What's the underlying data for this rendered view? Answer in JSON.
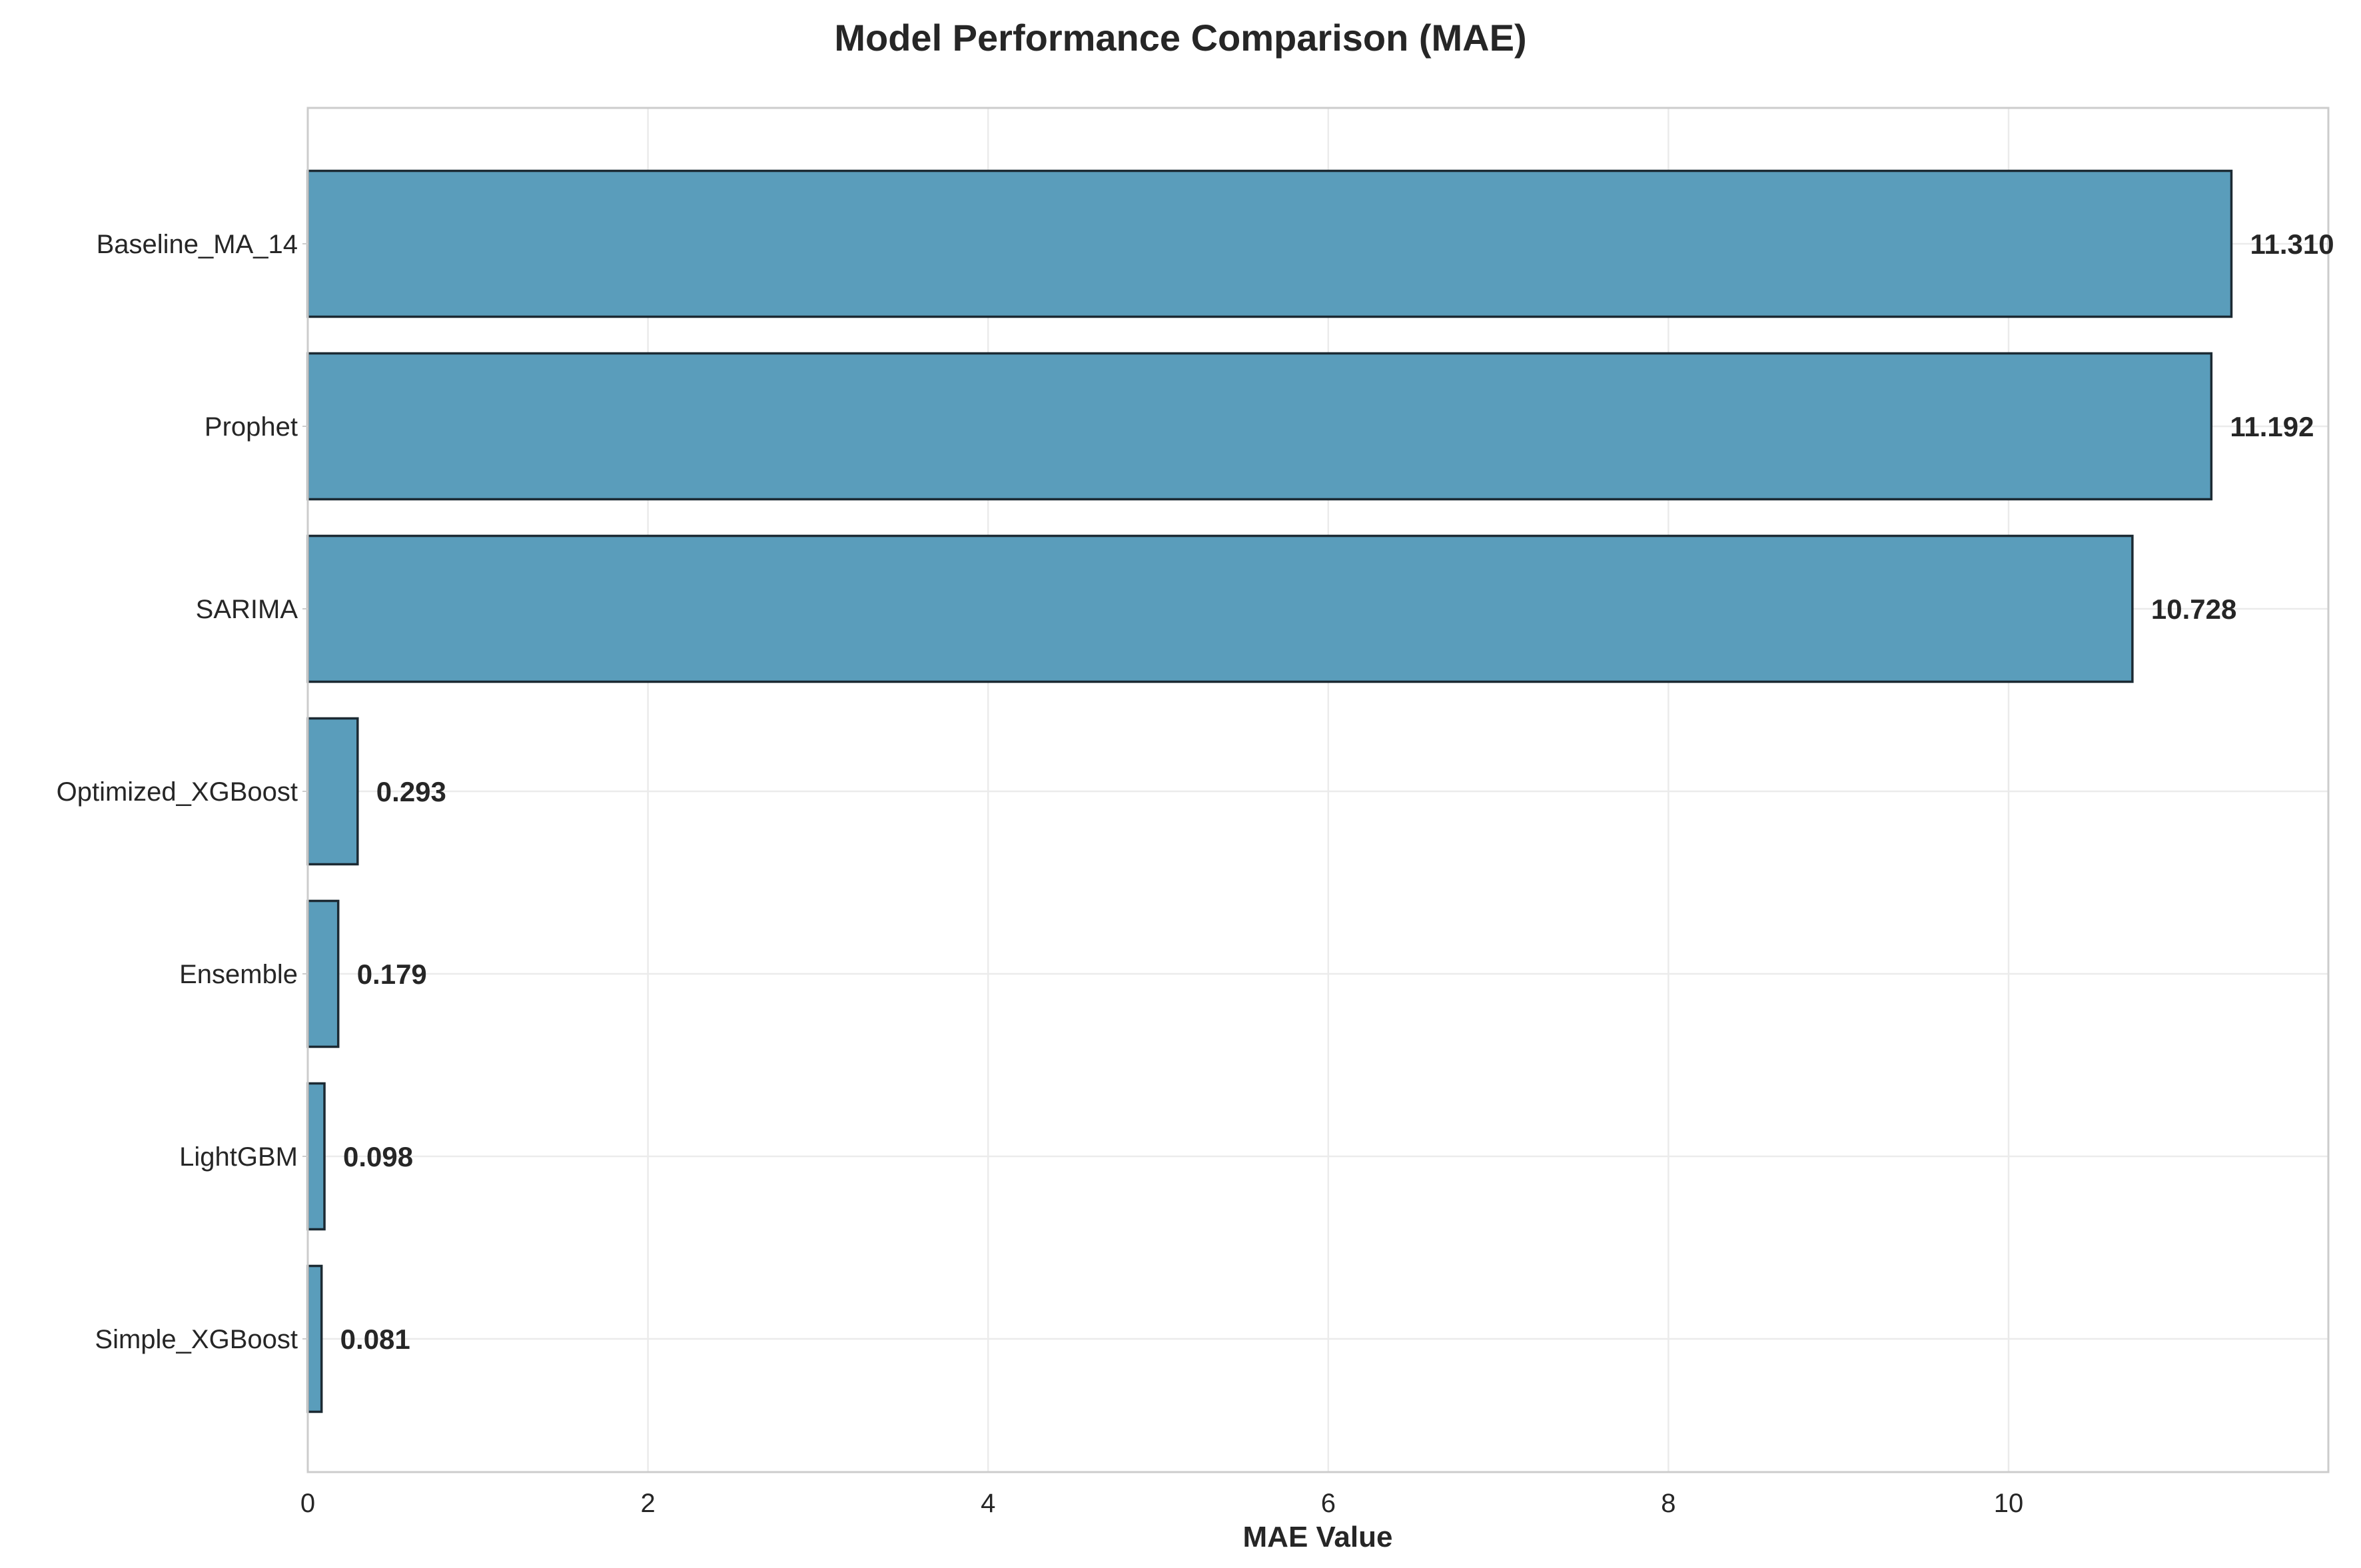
{
  "chart_data": {
    "type": "bar",
    "orientation": "horizontal",
    "title": "Model Performance Comparison (MAE)",
    "xlabel": "MAE Value",
    "ylabel": "",
    "categories": [
      "Baseline_MA_14",
      "Prophet",
      "SARIMA",
      "Optimized_XGBoost",
      "Ensemble",
      "LightGBM",
      "Simple_XGBoost"
    ],
    "values": [
      11.31,
      11.192,
      10.728,
      0.293,
      0.179,
      0.098,
      0.081
    ],
    "value_labels": [
      "11.310",
      "11.192",
      "10.728",
      "0.293",
      "0.179",
      "0.098",
      "0.081"
    ],
    "x_ticks": [
      0,
      2,
      4,
      6,
      8,
      10
    ],
    "x_tick_labels": [
      "0",
      "2",
      "4",
      "6",
      "8",
      "10"
    ],
    "xlim": [
      0,
      11.88
    ],
    "grid": true,
    "bar_color": "#5a9dbb",
    "edge_color": "#1c2a33"
  }
}
